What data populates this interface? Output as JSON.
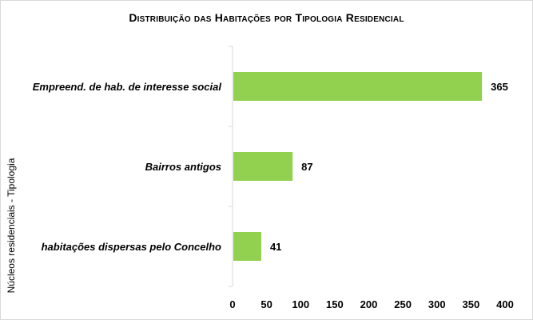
{
  "chart_data": {
    "type": "bar",
    "orientation": "horizontal",
    "title": "Distribuição das Habitações por Tipologia Residencial",
    "ylabel": "Núcleos residenciais - Tipologia",
    "xlabel": "",
    "categories": [
      "Empreend. de hab. de interesse social",
      "Bairros antigos",
      "habitações dispersas pelo Concelho"
    ],
    "values": [
      365,
      87,
      41
    ],
    "xlim": [
      0,
      400
    ],
    "xticks": [
      0,
      50,
      100,
      150,
      200,
      250,
      300,
      350,
      400
    ],
    "bar_color": "#92d050",
    "grid": false,
    "legend": "none"
  }
}
